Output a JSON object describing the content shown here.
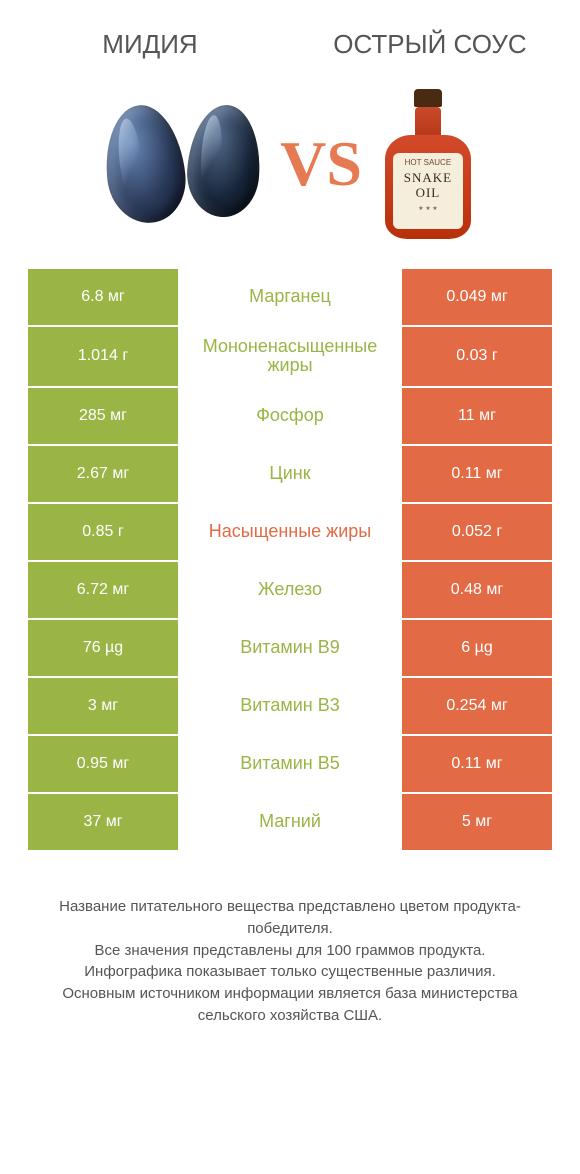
{
  "colors": {
    "green": "#99b545",
    "orange": "#e26a45",
    "row_gap": "#ffffff"
  },
  "header": {
    "left_title": "МИДИЯ",
    "right_title": "ОСТРЫЙ СОУС"
  },
  "hero": {
    "vs_text": "VS",
    "bottle_label_top": "HOT SAUCE",
    "bottle_brand": "SNAKE OIL"
  },
  "comparison": {
    "rows": [
      {
        "nutrient": "Марганец",
        "left": "6.8 мг",
        "right": "0.049 мг",
        "winner": "left"
      },
      {
        "nutrient": "Мононенасыщенные жиры",
        "left": "1.014 г",
        "right": "0.03 г",
        "winner": "left"
      },
      {
        "nutrient": "Фосфор",
        "left": "285 мг",
        "right": "11 мг",
        "winner": "left"
      },
      {
        "nutrient": "Цинк",
        "left": "2.67 мг",
        "right": "0.11 мг",
        "winner": "left"
      },
      {
        "nutrient": "Насыщенные жиры",
        "left": "0.85 г",
        "right": "0.052 г",
        "winner": "right"
      },
      {
        "nutrient": "Железо",
        "left": "6.72 мг",
        "right": "0.48 мг",
        "winner": "left"
      },
      {
        "nutrient": "Витамин В9",
        "left": "76 µg",
        "right": "6 µg",
        "winner": "left"
      },
      {
        "nutrient": "Витамин В3",
        "left": "3 мг",
        "right": "0.254 мг",
        "winner": "left"
      },
      {
        "nutrient": "Витамин В5",
        "left": "0.95 мг",
        "right": "0.11 мг",
        "winner": "left"
      },
      {
        "nutrient": "Магний",
        "left": "37 мг",
        "right": "5 мг",
        "winner": "left"
      }
    ]
  },
  "footer": {
    "line1": "Название питательного вещества представлено цветом продукта-победителя.",
    "line2": "Все значения представлены для 100 граммов продукта.",
    "line3": "Инфографика показывает только существенные различия.",
    "line4": "Основным источником информации является база министерства сельского хозяйства США."
  }
}
